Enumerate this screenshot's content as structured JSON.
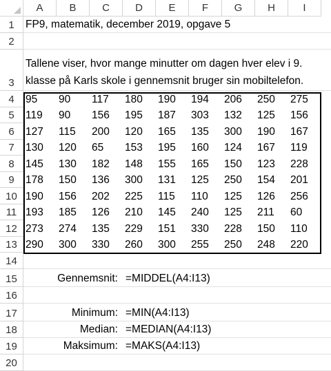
{
  "columns": [
    "A",
    "B",
    "C",
    "D",
    "E",
    "F",
    "G",
    "H",
    "I"
  ],
  "rows": {
    "r1": {
      "num": "1",
      "text": "FP9, matematik, december 2019, opgave 5"
    },
    "r2": {
      "num": "2"
    },
    "r3": {
      "num": "3",
      "line1": "Tallene viser, hvor mange minutter om dagen hver elev i 9.",
      "line2": "klasse på Karls skole i gennemsnit bruger sin mobiltelefon."
    },
    "data": [
      {
        "num": "4",
        "values": [
          "95",
          "90",
          "117",
          "180",
          "190",
          "194",
          "206",
          "250",
          "275"
        ]
      },
      {
        "num": "5",
        "values": [
          "119",
          "90",
          "156",
          "195",
          "187",
          "303",
          "132",
          "125",
          "156"
        ]
      },
      {
        "num": "6",
        "values": [
          "127",
          "115",
          "200",
          "120",
          "165",
          "135",
          "300",
          "190",
          "167"
        ]
      },
      {
        "num": "7",
        "values": [
          "130",
          "120",
          "65",
          "153",
          "195",
          "160",
          "124",
          "167",
          "119"
        ]
      },
      {
        "num": "8",
        "values": [
          "145",
          "130",
          "182",
          "148",
          "155",
          "165",
          "150",
          "123",
          "228"
        ]
      },
      {
        "num": "9",
        "values": [
          "178",
          "150",
          "136",
          "300",
          "131",
          "125",
          "250",
          "154",
          "201"
        ]
      },
      {
        "num": "10",
        "values": [
          "190",
          "156",
          "202",
          "225",
          "115",
          "110",
          "125",
          "126",
          "256"
        ]
      },
      {
        "num": "11",
        "values": [
          "193",
          "185",
          "126",
          "210",
          "145",
          "240",
          "125",
          "211",
          "60"
        ]
      },
      {
        "num": "12",
        "values": [
          "273",
          "274",
          "135",
          "229",
          "151",
          "330",
          "228",
          "150",
          "110"
        ]
      },
      {
        "num": "13",
        "values": [
          "290",
          "300",
          "330",
          "260",
          "300",
          "255",
          "250",
          "248",
          "220"
        ]
      }
    ],
    "r14": {
      "num": "14"
    },
    "r15": {
      "num": "15",
      "label": "Gennemsnit:",
      "formula": "=MIDDEL(A4:I13)"
    },
    "r16": {
      "num": "16"
    },
    "r17": {
      "num": "17",
      "label": "Minimum:",
      "formula": "=MIN(A4:I13)"
    },
    "r18": {
      "num": "18",
      "label": "Median:",
      "formula": "=MEDIAN(A4:I13)"
    },
    "r19": {
      "num": "19",
      "label": "Maksimum:",
      "formula": "=MAKS(A4:I13)"
    },
    "r20": {
      "num": "20"
    }
  }
}
